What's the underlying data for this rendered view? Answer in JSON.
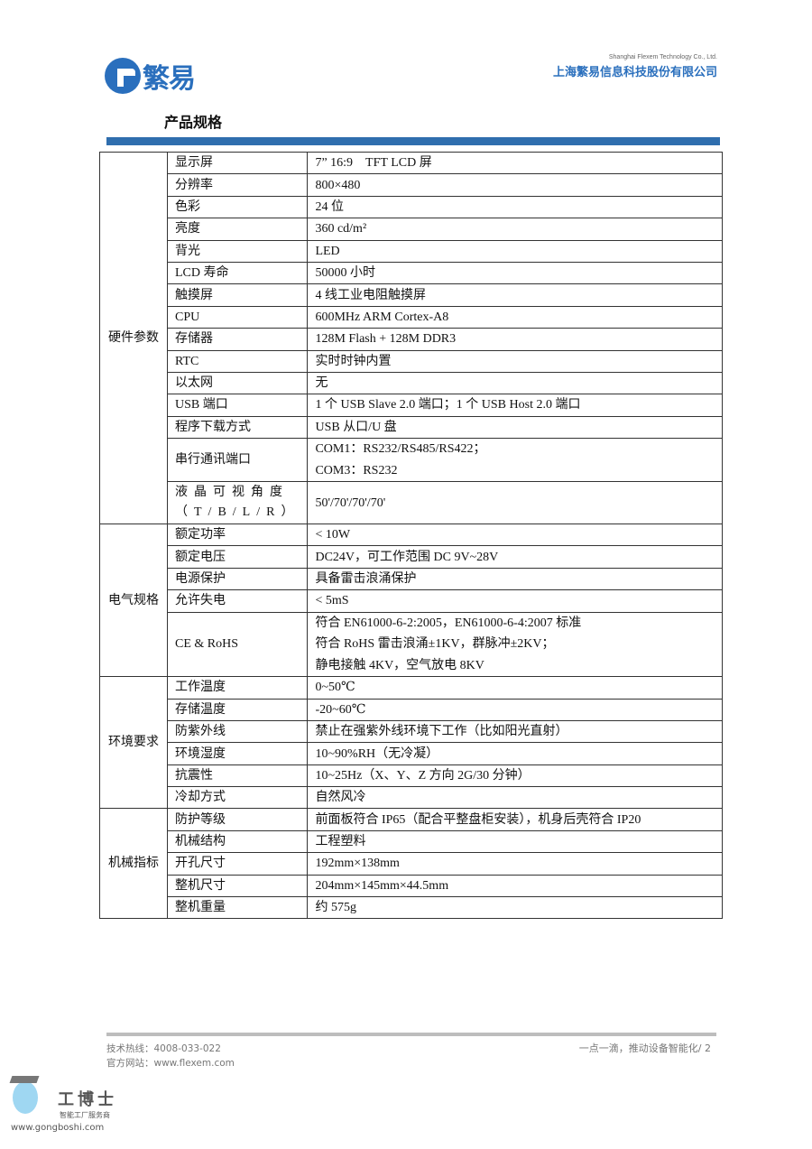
{
  "header": {
    "logo_text": "繁易",
    "company_en": "Shanghai Flexem Technology Co., Ltd.",
    "company_cn": "上海繁易信息科技股份有限公司",
    "brand_color": "#2a6fbd"
  },
  "title": "产品规格",
  "sections": [
    {
      "name": "硬件参数",
      "rows": [
        {
          "label": "显示屏",
          "value": [
            "7” 16:9　TFT LCD 屏"
          ]
        },
        {
          "label": "分辨率",
          "value": [
            "800×480"
          ]
        },
        {
          "label": "色彩",
          "value": [
            "24 位"
          ]
        },
        {
          "label": "亮度",
          "value": [
            "360 cd/m²"
          ]
        },
        {
          "label": "背光",
          "value": [
            "LED"
          ]
        },
        {
          "label": "LCD 寿命",
          "value": [
            "50000 小时"
          ]
        },
        {
          "label": "触摸屏",
          "value": [
            "4 线工业电阻触摸屏"
          ]
        },
        {
          "label": "CPU",
          "value": [
            "600MHz ARM Cortex-A8"
          ]
        },
        {
          "label": "存储器",
          "value": [
            "128M Flash + 128M DDR3"
          ]
        },
        {
          "label": "RTC",
          "value": [
            "实时时钟内置"
          ]
        },
        {
          "label": "以太网",
          "value": [
            "无"
          ]
        },
        {
          "label": "USB 端口",
          "value": [
            "1 个 USB Slave 2.0 端口；1 个 USB Host 2.0 端口"
          ]
        },
        {
          "label": "程序下载方式",
          "value": [
            "USB  从口/U 盘"
          ]
        },
        {
          "label": "串行通讯端口",
          "value": [
            "COM1：RS232/RS485/RS422；",
            "COM3：RS232"
          ]
        },
        {
          "label": "液晶可视角度（T/B/L/R）",
          "value": [
            "50'/70'/70'/70'"
          ]
        }
      ]
    },
    {
      "name": "电气规格",
      "rows": [
        {
          "label": "额定功率",
          "value": [
            "< 10W"
          ]
        },
        {
          "label": "额定电压",
          "value": [
            "DC24V，可工作范围  DC 9V~28V"
          ]
        },
        {
          "label": "电源保护",
          "value": [
            "具备雷击浪涌保护"
          ]
        },
        {
          "label": "允许失电",
          "value": [
            "< 5mS"
          ]
        },
        {
          "label": "CE & RoHS",
          "value": [
            "符合 EN61000-6-2:2005，EN61000-6-4:2007 标准",
            "符合 RoHS 雷击浪涌±1KV，群脉冲±2KV；",
            "静电接触 4KV，空气放电 8KV"
          ]
        }
      ]
    },
    {
      "name": "环境要求",
      "rows": [
        {
          "label": "工作温度",
          "value": [
            "0~50℃"
          ]
        },
        {
          "label": "存储温度",
          "value": [
            "-20~60℃"
          ]
        },
        {
          "label": "防紫外线",
          "value": [
            "禁止在强紫外线环境下工作（比如阳光直射）"
          ]
        },
        {
          "label": "环境湿度",
          "value": [
            "10~90%RH（无冷凝）"
          ]
        },
        {
          "label": "抗震性",
          "value": [
            "10~25Hz（X、Y、Z 方向 2G/30 分钟）"
          ]
        },
        {
          "label": "冷却方式",
          "value": [
            "自然风冷"
          ]
        }
      ]
    },
    {
      "name": "机械指标",
      "rows": [
        {
          "label": "防护等级",
          "value": [
            "前面板符合 IP65（配合平整盘柜安装），机身后壳符合 IP20"
          ]
        },
        {
          "label": "机械结构",
          "value": [
            "工程塑料"
          ]
        },
        {
          "label": "开孔尺寸",
          "value": [
            "192mm×138mm"
          ]
        },
        {
          "label": "整机尺寸",
          "value": [
            "204mm×145mm×44.5mm"
          ]
        },
        {
          "label": "整机重量",
          "value": [
            "约 575g"
          ]
        }
      ]
    }
  ],
  "footer": {
    "hotline": "技术热线：4008-033-022",
    "website": "官方网站：www.flexem.com",
    "slogan": "一点一滴，推动设备智能化/ 2"
  },
  "watermark": {
    "name": "工博士",
    "sub": "智能工厂服务商",
    "url": "www.gongboshi.com"
  }
}
